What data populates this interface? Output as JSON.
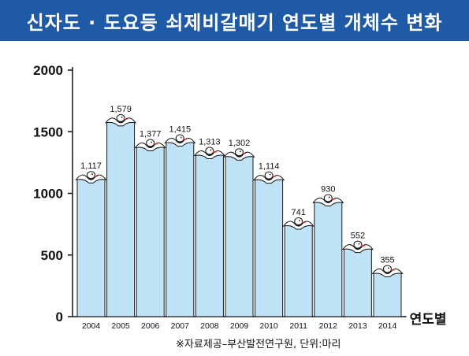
{
  "title": "신자도 · 도요등 쇠제비갈매기 연도별 개체수 변화",
  "source": "※자료제공–부산발전연구원, 단위:마리",
  "colors": {
    "title_bg": "#1f5aa6",
    "bar_fill": "#bfe2f7",
    "bar_stroke": "#1a1a1a"
  },
  "chart_data": {
    "type": "bar",
    "title": "신자도 · 도요등 쇠제비갈매기 연도별 개체수 변화",
    "xlabel": "연도별",
    "ylabel": "",
    "categories": [
      "2004",
      "2005",
      "2006",
      "2007",
      "2008",
      "2009",
      "2010",
      "2011",
      "2012",
      "2013",
      "2014"
    ],
    "values": [
      1117,
      1579,
      1377,
      1415,
      1313,
      1302,
      1114,
      741,
      930,
      552,
      355
    ],
    "value_labels": [
      "1,117",
      "1,579",
      "1,377",
      "1,415",
      "1,313",
      "1,302",
      "1,114",
      "741",
      "930",
      "552",
      "355"
    ],
    "ylim": [
      0,
      2000
    ],
    "yticks": [
      0,
      500,
      1000,
      1500,
      2000
    ],
    "ytick_labels": [
      "0",
      "500",
      "1000",
      "1500",
      "2000"
    ],
    "unit": "마리",
    "grid": false,
    "decoration": "bird-icon"
  }
}
